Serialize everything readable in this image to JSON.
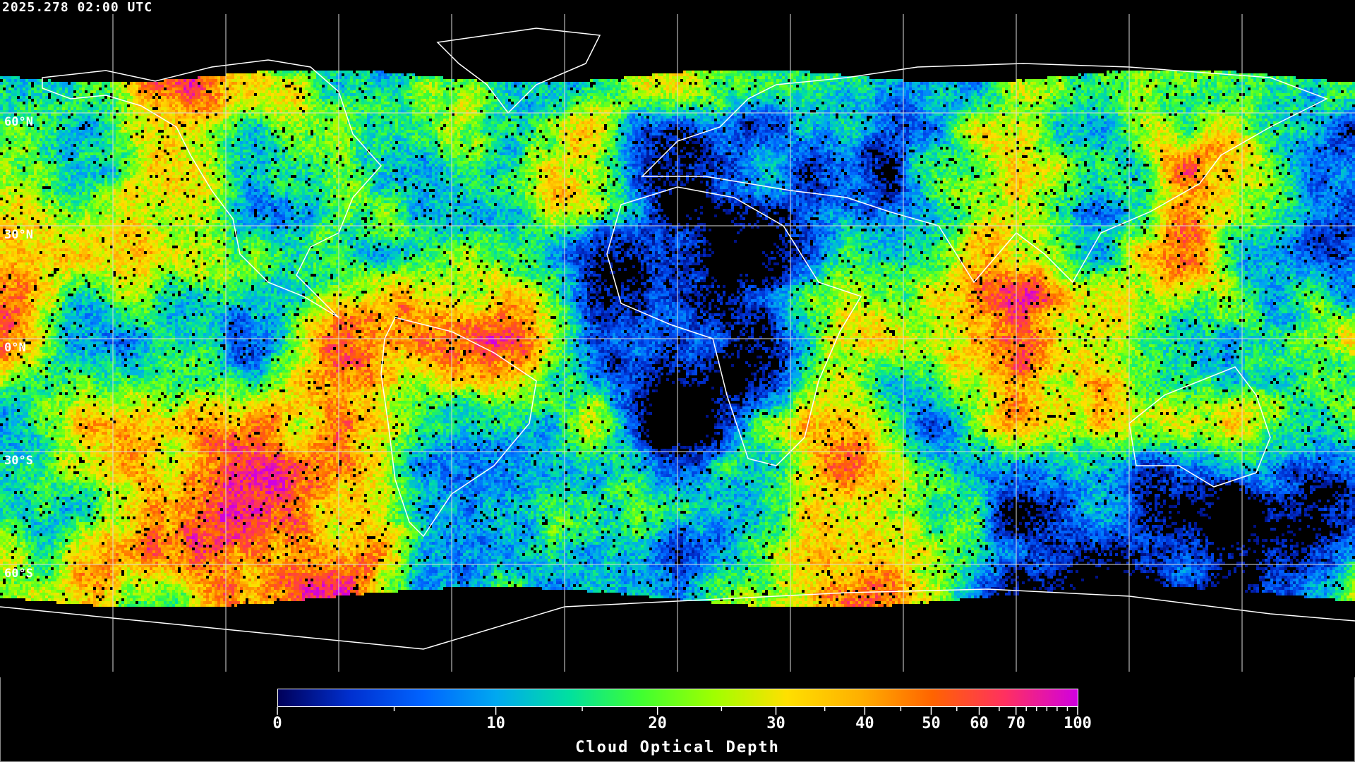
{
  "title": "2025.278 02:00 UTC",
  "latitude_labels": [
    "60°N",
    "30°N",
    "0°N",
    "30°S",
    "60°S"
  ],
  "colorbar": {
    "title": "Cloud Optical Depth",
    "range": [
      0,
      100
    ],
    "major_ticks": [
      "0",
      "10",
      "20",
      "30",
      "40",
      "50",
      "60",
      "70",
      "100"
    ],
    "minor_ticks": [
      5,
      15,
      25,
      35,
      45,
      55,
      65,
      75,
      80,
      85,
      90,
      95
    ],
    "colors": [
      "#00005a",
      "#0030d0",
      "#0064ff",
      "#00a8f0",
      "#00e0a0",
      "#40ff30",
      "#a0ff00",
      "#ffe000",
      "#ffb000",
      "#ff6400",
      "#ff3060",
      "#d000e0"
    ]
  },
  "colors": {
    "background": "#000000",
    "grid": "#dddddd",
    "coastline": "#ffffff",
    "no_data": "#000000"
  }
}
